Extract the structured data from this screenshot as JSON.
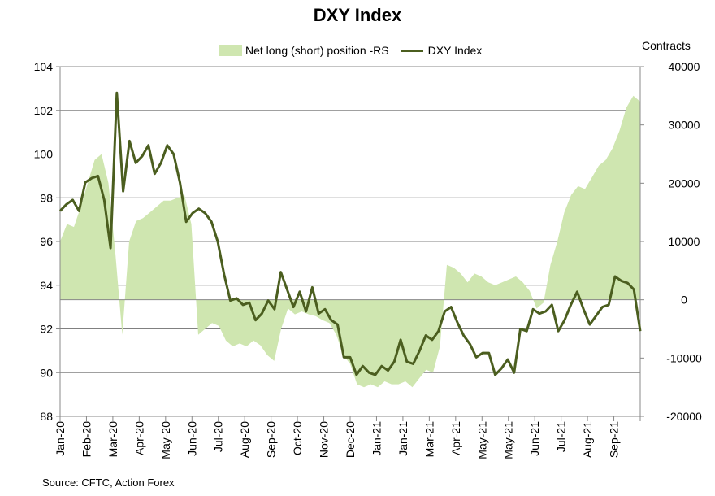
{
  "chart_data": {
    "type": "line",
    "title": "DXY Index",
    "ylabel_right": "Contracts",
    "source": "Source: CFTC, Action Forex",
    "grid": true,
    "legend_position": "top",
    "colors": {
      "area": "#cfe6b0",
      "line": "#4b5e1f"
    },
    "ylim_left": [
      88,
      104
    ],
    "ylim_right": [
      -20000,
      40000
    ],
    "left_ticks": [
      88,
      90,
      92,
      94,
      96,
      98,
      100,
      102,
      104
    ],
    "right_ticks": [
      -20000,
      -10000,
      0,
      10000,
      20000,
      30000,
      40000
    ],
    "x_tick_labels": [
      "Jan-20",
      "Feb-20",
      "Mar-20",
      "Apr-20",
      "May-20",
      "Jun-20",
      "Jul-20",
      "Aug-20",
      "Sep-20",
      "Oct-20",
      "Nov-20",
      "Dec-20",
      "Jan-21",
      "Jan-21",
      "Mar-21",
      "Apr-21",
      "May-21",
      "May-21",
      "Jun-21",
      "Jul-21",
      "Aug-21",
      "Sep-21"
    ],
    "series": [
      {
        "name": "Net long (short) position -RS",
        "axis": "right",
        "kind": "area",
        "values": [
          10000,
          13000,
          12500,
          16000,
          20000,
          24000,
          25000,
          20000,
          8000,
          -6000,
          10000,
          13500,
          14000,
          15000,
          16000,
          17000,
          17000,
          17500,
          18000,
          13000,
          -6000,
          -5000,
          -4000,
          -4500,
          -7000,
          -8000,
          -7500,
          -8000,
          -7000,
          -7800,
          -9500,
          -10500,
          -5000,
          -1500,
          -2500,
          -2000,
          -2500,
          -2800,
          -3500,
          -4000,
          -6000,
          -9500,
          -11000,
          -14500,
          -15000,
          -14500,
          -15000,
          -14000,
          -14500,
          -14500,
          -14000,
          -15000,
          -13500,
          -12000,
          -12500,
          -8000,
          6000,
          5500,
          4500,
          3000,
          4500,
          4000,
          3000,
          2500,
          3000,
          3500,
          4000,
          3000,
          1500,
          -1500,
          -500,
          6000,
          10000,
          15000,
          18000,
          19500,
          19000,
          21000,
          23000,
          24000,
          26000,
          29000,
          33000,
          35000,
          34000
        ],
        "legend_label": "Net long (short) position -RS"
      },
      {
        "name": "DXY Index",
        "axis": "left",
        "kind": "line",
        "values": [
          97.4,
          97.7,
          97.9,
          97.4,
          98.7,
          98.9,
          99.0,
          97.9,
          95.7,
          102.8,
          98.3,
          100.6,
          99.6,
          99.9,
          100.4,
          99.1,
          99.6,
          100.4,
          100.0,
          98.7,
          96.9,
          97.3,
          97.5,
          97.3,
          96.9,
          96.0,
          94.5,
          93.3,
          93.4,
          93.1,
          93.2,
          92.4,
          92.7,
          93.3,
          92.9,
          94.6,
          93.8,
          93.0,
          93.7,
          92.8,
          93.9,
          92.7,
          92.9,
          92.4,
          92.2,
          90.7,
          90.7,
          89.9,
          90.3,
          90.0,
          89.9,
          90.3,
          90.1,
          90.5,
          91.5,
          90.5,
          90.4,
          91.0,
          91.7,
          91.5,
          91.9,
          92.8,
          93.0,
          92.3,
          91.7,
          91.3,
          90.7,
          90.9,
          90.9,
          89.9,
          90.2,
          90.6,
          90.0,
          92.0,
          91.9,
          92.9,
          92.7,
          92.8,
          93.1,
          91.9,
          92.4,
          93.1,
          93.7,
          92.9,
          92.2,
          92.6,
          93.0,
          93.1,
          94.4,
          94.2,
          94.1,
          93.8,
          91.9
        ]
      }
    ]
  }
}
